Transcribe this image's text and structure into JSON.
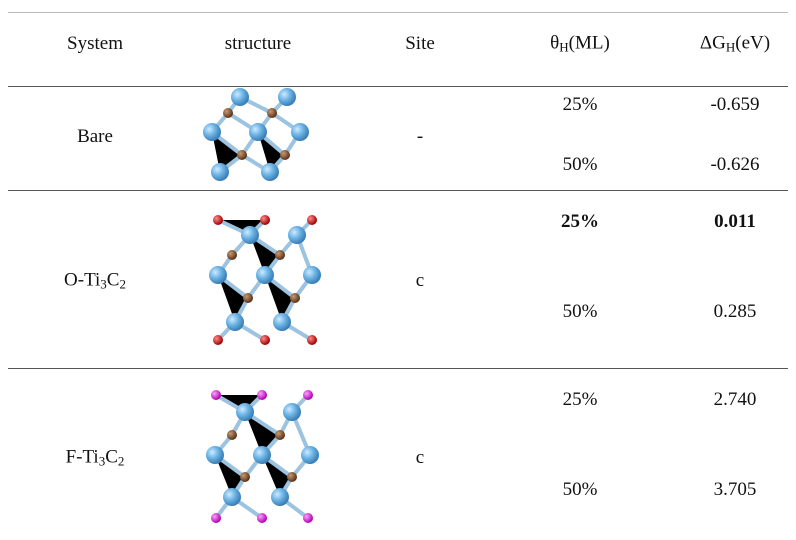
{
  "header": [
    [
      "System"
    ],
    [
      "structure"
    ],
    [
      "Site"
    ],
    [
      "θ",
      "H",
      "(ML)"
    ],
    [
      "ΔG",
      "H",
      "(eV)"
    ]
  ],
  "rows": [
    {
      "system": [
        "Bare"
      ],
      "site": "-",
      "entries": [
        {
          "coverage": "25%",
          "dG": "-0.659",
          "bold": false
        },
        {
          "coverage": "50%",
          "dG": "-0.626",
          "bold": false
        }
      ]
    },
    {
      "system": [
        "O-Ti",
        "3",
        "C",
        "2"
      ],
      "site": "c",
      "entries": [
        {
          "coverage": "25%",
          "dG": "0.011",
          "bold": true
        },
        {
          "coverage": "50%",
          "dG": "0.285",
          "bold": false
        }
      ]
    },
    {
      "system": [
        "F-Ti",
        "3",
        "C",
        "2"
      ],
      "site": "c",
      "entries": [
        {
          "coverage": "25%",
          "dG": "2.740",
          "bold": false
        },
        {
          "coverage": "50%",
          "dG": "3.705",
          "bold": false
        }
      ]
    }
  ]
}
